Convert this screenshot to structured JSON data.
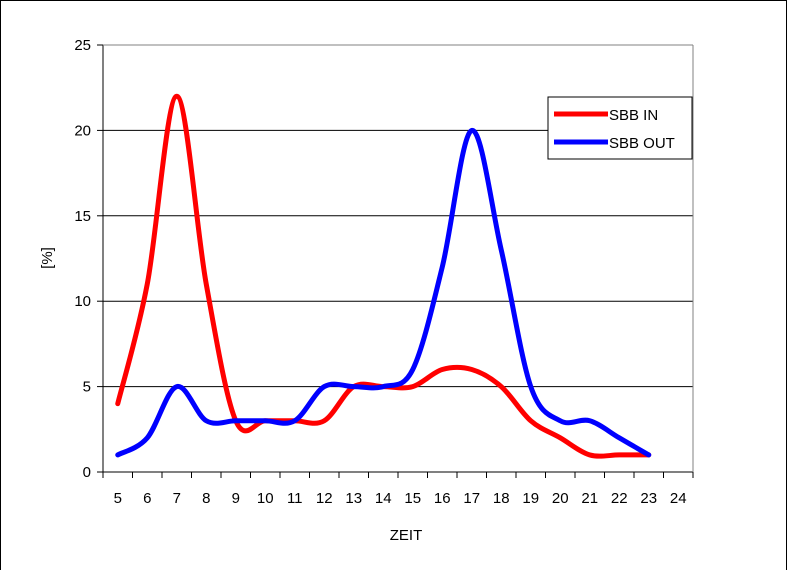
{
  "chart_data": {
    "type": "line",
    "xlabel": "ZEIT",
    "ylabel": "[%]",
    "x_ticks": [
      5,
      6,
      7,
      8,
      9,
      10,
      11,
      12,
      13,
      14,
      15,
      16,
      17,
      18,
      19,
      20,
      21,
      22,
      23,
      24
    ],
    "y_ticks": [
      0,
      5,
      10,
      15,
      20,
      25
    ],
    "xlim": [
      5,
      24
    ],
    "ylim": [
      0,
      25
    ],
    "grid": "horizontal",
    "legend_position": "top-right",
    "series": [
      {
        "name": "SBB IN",
        "color": "#ff0000",
        "x": [
          5,
          6,
          7,
          8,
          9,
          10,
          11,
          12,
          13,
          14,
          15,
          16,
          17,
          18,
          19,
          20,
          21,
          22,
          23
        ],
        "values": [
          4,
          11,
          22,
          11,
          3,
          3,
          3,
          3,
          5,
          5,
          5,
          6,
          6,
          5,
          3,
          2,
          1,
          1,
          1
        ]
      },
      {
        "name": "SBB OUT",
        "color": "#0000ff",
        "x": [
          5,
          6,
          7,
          8,
          9,
          10,
          11,
          12,
          13,
          14,
          15,
          16,
          17,
          18,
          19,
          20,
          21,
          22,
          23
        ],
        "values": [
          1,
          2,
          5,
          3,
          3,
          3,
          3,
          5,
          5,
          5,
          6,
          12,
          20,
          13,
          5,
          3,
          3,
          2,
          1
        ]
      }
    ]
  }
}
